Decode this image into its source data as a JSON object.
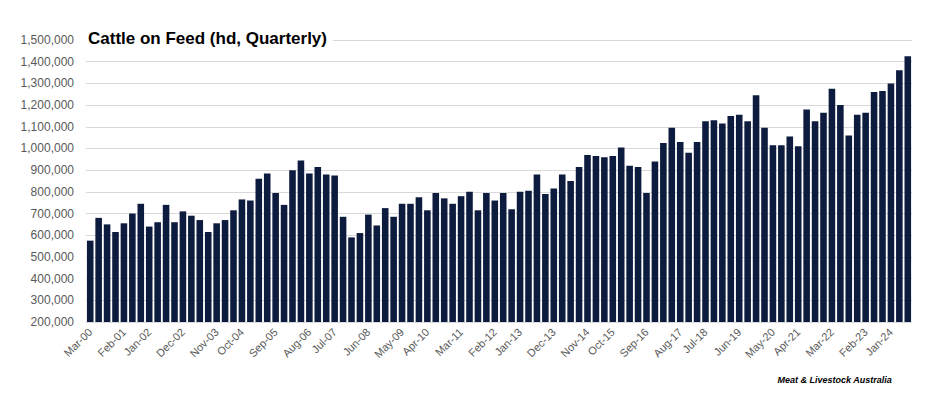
{
  "chart_data": {
    "type": "bar",
    "title": "Cattle on Feed (hd, Quarterly)",
    "annotation": "Meat & Livestock Australia",
    "categories": [
      "Mar-00",
      null,
      null,
      null,
      "Feb-01",
      null,
      null,
      "Jan-02",
      null,
      null,
      null,
      "Dec-02",
      null,
      null,
      null,
      "Nov-03",
      null,
      null,
      "Oct-04",
      null,
      null,
      null,
      "Sep-05",
      null,
      null,
      null,
      "Aug-06",
      null,
      null,
      "Jul-07",
      null,
      null,
      null,
      "Jun-08",
      null,
      null,
      null,
      "May-09",
      null,
      null,
      "Apr-10",
      null,
      null,
      null,
      "Mar-11",
      null,
      null,
      null,
      "Feb-12",
      null,
      null,
      "Jan-13",
      null,
      null,
      null,
      "Dec-13",
      null,
      null,
      null,
      "Nov-14",
      null,
      null,
      "Oct-15",
      null,
      null,
      null,
      "Sep-16",
      null,
      null,
      null,
      "Aug-17",
      null,
      null,
      "Jul-18",
      null,
      null,
      null,
      "Jun-19",
      null,
      null,
      null,
      "May-20",
      null,
      null,
      "Apr-21",
      null,
      null,
      null,
      "Mar-22",
      null,
      null,
      null,
      "Feb-23",
      null,
      null,
      "Jan-24",
      null,
      null
    ],
    "values": [
      575000,
      680000,
      650000,
      615000,
      655000,
      700000,
      745000,
      640000,
      660000,
      740000,
      660000,
      710000,
      690000,
      670000,
      615000,
      655000,
      670000,
      715000,
      765000,
      760000,
      860000,
      885000,
      795000,
      740000,
      900000,
      945000,
      885000,
      915000,
      880000,
      875000,
      685000,
      590000,
      610000,
      695000,
      645000,
      725000,
      685000,
      745000,
      745000,
      775000,
      715000,
      795000,
      770000,
      745000,
      780000,
      800000,
      715000,
      795000,
      760000,
      795000,
      720000,
      800000,
      805000,
      880000,
      790000,
      815000,
      880000,
      850000,
      915000,
      970000,
      965000,
      960000,
      965000,
      1005000,
      920000,
      915000,
      795000,
      940000,
      1025000,
      1095000,
      1030000,
      980000,
      1030000,
      1125000,
      1130000,
      1115000,
      1150000,
      1155000,
      1125000,
      1245000,
      1095000,
      1015000,
      1015000,
      1055000,
      1010000,
      1180000,
      1125000,
      1165000,
      1275000,
      1200000,
      1060000,
      1155000,
      1165000,
      1260000,
      1265000,
      1300000,
      1360000,
      1425000
    ],
    "color": "#0d1b3e",
    "ylim": [
      200000,
      1500000
    ],
    "yticks": [
      {
        "value": 200000,
        "label": "200,000"
      },
      {
        "value": 300000,
        "label": "300,000"
      },
      {
        "value": 400000,
        "label": "400,000"
      },
      {
        "value": 500000,
        "label": "500,000"
      },
      {
        "value": 600000,
        "label": "600,000"
      },
      {
        "value": 700000,
        "label": "700,000"
      },
      {
        "value": 800000,
        "label": "800,000"
      },
      {
        "value": 900000,
        "label": "900,000"
      },
      {
        "value": 1000000,
        "label": "1,000,000"
      },
      {
        "value": 1100000,
        "label": "1,100,000"
      },
      {
        "value": 1200000,
        "label": "1,200,000"
      },
      {
        "value": 1300000,
        "label": "1,300,000"
      },
      {
        "value": 1400000,
        "label": "1,400,000"
      },
      {
        "value": 1500000,
        "label": "1,500,000"
      }
    ],
    "grid": true
  }
}
